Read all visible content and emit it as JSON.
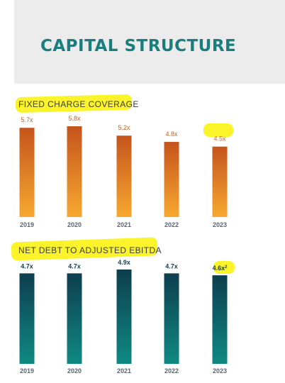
{
  "page": {
    "title": "CAPITAL STRUCTURE"
  },
  "chart_data": [
    {
      "type": "bar",
      "title": "FIXED CHARGE COVERAGE",
      "categories": [
        "2019",
        "2020",
        "2021",
        "2022",
        "2023"
      ],
      "values": [
        5.7,
        5.8,
        5.2,
        4.8,
        4.5
      ],
      "value_labels": [
        "5.7x",
        "5.8x",
        "5.2x",
        "4.8x",
        "4.5x"
      ],
      "highlighted": [
        "2023"
      ],
      "colors": {
        "bar_top": "#c5541c",
        "bar_bottom": "#f7a830",
        "label": "#c8611f"
      },
      "ylim": [
        0,
        5.8
      ],
      "grid": false
    },
    {
      "type": "bar",
      "title": "NET DEBT TO ADJUSTED EBITDA",
      "categories": [
        "2019",
        "2020",
        "2021",
        "2022",
        "2023"
      ],
      "values": [
        4.7,
        4.7,
        4.9,
        4.7,
        4.6
      ],
      "value_labels": [
        "4.7x",
        "4.7x",
        "4.9x",
        "4.7x",
        "4.6x"
      ],
      "footnote_marker": "2",
      "highlighted": [
        "2023"
      ],
      "colors": {
        "bar_top": "#0e3d4e",
        "bar_bottom": "#0f8a82",
        "label": "#163f4f"
      },
      "ylim": [
        0,
        4.9
      ],
      "grid": false
    }
  ]
}
